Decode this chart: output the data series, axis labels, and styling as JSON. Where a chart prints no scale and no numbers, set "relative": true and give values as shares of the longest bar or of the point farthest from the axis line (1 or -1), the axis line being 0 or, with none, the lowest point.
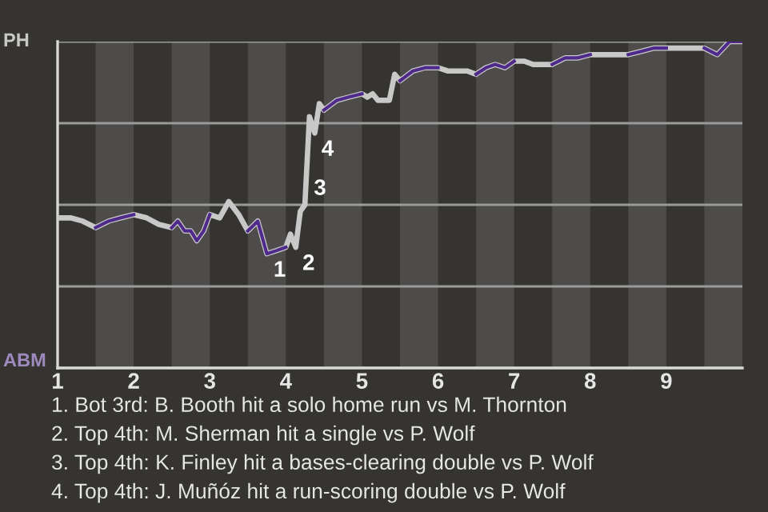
{
  "chart_data": {
    "type": "line",
    "relative": true,
    "x": [
      1,
      1.17,
      1.33,
      1.5,
      1.67,
      1.83,
      2,
      2.17,
      2.33,
      2.5,
      2.58,
      2.67,
      2.75,
      2.83,
      2.92,
      3,
      3.13,
      3.25,
      3.38,
      3.5,
      3.63,
      3.75,
      3.88,
      4,
      4.06,
      4.13,
      4.19,
      4.25,
      4.31,
      4.38,
      4.44,
      4.5,
      4.67,
      4.83,
      5,
      5.07,
      5.14,
      5.21,
      5.29,
      5.36,
      5.43,
      5.5,
      5.67,
      5.83,
      6,
      6.13,
      6.25,
      6.38,
      6.5,
      6.63,
      6.75,
      6.88,
      7,
      7.13,
      7.25,
      7.38,
      7.5,
      7.67,
      7.83,
      8,
      8.17,
      8.33,
      8.5,
      8.67,
      8.83,
      9,
      9.13,
      9.25,
      9.38,
      9.5,
      9.67,
      9.83,
      10
    ],
    "series": [
      {
        "color": "#c8c8c8",
        "values": [
          0.46,
          0.46,
          0.45,
          0.43,
          0.45,
          0.46,
          0.47,
          0.46,
          0.44,
          0.43,
          0.45,
          0.42,
          0.42,
          0.39,
          0.42,
          0.47,
          0.46,
          0.51,
          0.47,
          0.42,
          0.45,
          0.35,
          0.36,
          0.37,
          0.41,
          0.37,
          0.48,
          0.5,
          0.77,
          0.72,
          0.81,
          0.79,
          0.82,
          0.83,
          0.84,
          0.83,
          0.84,
          0.82,
          0.82,
          0.82,
          0.9,
          0.88,
          0.91,
          0.92,
          0.92,
          0.91,
          0.91,
          0.91,
          0.9,
          0.92,
          0.93,
          0.92,
          0.94,
          0.94,
          0.93,
          0.93,
          0.93,
          0.95,
          0.95,
          0.96,
          0.96,
          0.96,
          0.96,
          0.97,
          0.98,
          0.98,
          0.98,
          0.98,
          0.98,
          0.98,
          0.96,
          1.0,
          1.0
        ]
      },
      {
        "color": "#4f2a8a",
        "values": [
          null,
          null,
          null,
          0.43,
          0.45,
          0.46,
          0.47,
          null,
          null,
          0.43,
          0.45,
          0.42,
          0.42,
          0.39,
          0.42,
          0.47,
          null,
          null,
          null,
          0.42,
          0.45,
          0.35,
          0.36,
          0.37,
          null,
          null,
          null,
          null,
          null,
          null,
          null,
          0.79,
          0.82,
          0.83,
          0.84,
          null,
          null,
          null,
          null,
          null,
          null,
          0.88,
          0.91,
          0.92,
          0.92,
          null,
          null,
          null,
          0.9,
          0.92,
          0.93,
          0.92,
          0.94,
          null,
          null,
          null,
          0.93,
          0.95,
          0.95,
          0.96,
          null,
          null,
          0.96,
          0.97,
          0.98,
          0.98,
          null,
          null,
          null,
          0.98,
          0.96,
          1.0,
          1.0
        ]
      }
    ],
    "xlim": [
      1,
      10
    ],
    "xticks": [
      1,
      2,
      3,
      4,
      5,
      6,
      7,
      8,
      9
    ],
    "grid": "y",
    "bands": [
      {
        "axis": "x",
        "from": 1.5,
        "to": 2,
        "color": "#4d4c4a"
      },
      {
        "axis": "x",
        "from": 2.5,
        "to": 3,
        "color": "#4d4c4a"
      },
      {
        "axis": "x",
        "from": 3.5,
        "to": 4,
        "color": "#4d4c4a"
      },
      {
        "axis": "x",
        "from": 4.5,
        "to": 5,
        "color": "#4d4c4a"
      },
      {
        "axis": "x",
        "from": 5.5,
        "to": 6,
        "color": "#4d4c4a"
      },
      {
        "axis": "x",
        "from": 6.5,
        "to": 7,
        "color": "#4d4c4a"
      },
      {
        "axis": "x",
        "from": 7.5,
        "to": 8,
        "color": "#4d4c4a"
      },
      {
        "axis": "x",
        "from": 8.5,
        "to": 9,
        "color": "#4d4c4a"
      },
      {
        "axis": "x",
        "from": 9.5,
        "to": 10,
        "color": "#4d4c4a"
      }
    ],
    "annotations": [
      "PH",
      "ABM",
      {
        "text": "1",
        "x": 3.75,
        "y": 0.35
      },
      {
        "text": "2",
        "x": 4.13,
        "y": 0.37
      },
      {
        "text": "3",
        "x": 4.28,
        "y": 0.6
      },
      {
        "text": "4",
        "x": 4.38,
        "y": 0.72
      },
      "1. Bot 3rd: B. Booth hit a solo home run vs M. Thornton",
      "2. Top 4th: M. Sherman hit a single vs P. Wolf",
      "3. Top 4th: K. Finley hit a bases-clearing double vs P. Wolf",
      "4. Top 4th: J. Muñóz hit a run-scoring double vs P. Wolf"
    ]
  }
}
